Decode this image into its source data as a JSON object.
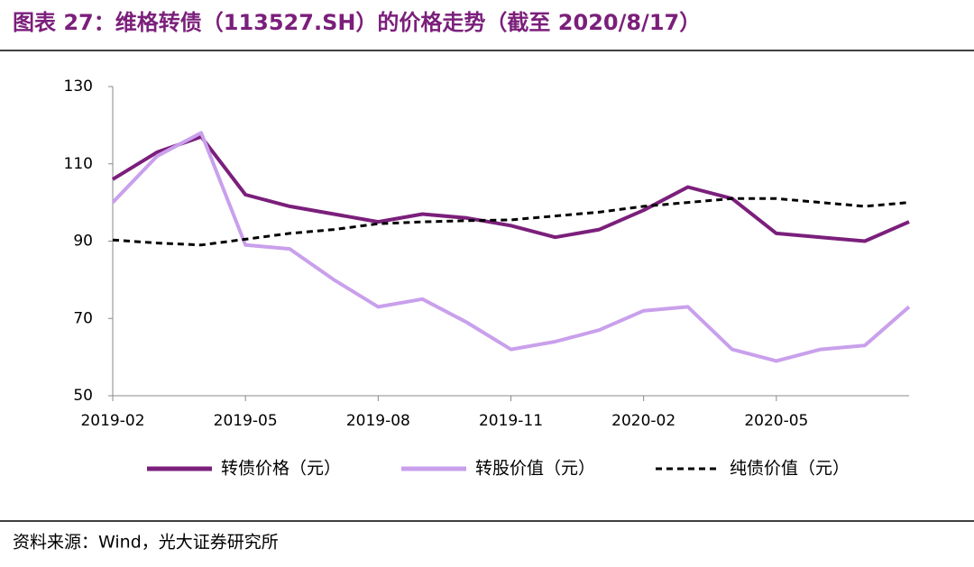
{
  "chart_data": {
    "type": "line",
    "title": "图表 27：维格转债（113527.SH）的价格走势（截至 2020/8/17）",
    "source": "资料来源：Wind，光大证券研究所",
    "categories": [
      "2019-02",
      null,
      null,
      "2019-05",
      null,
      null,
      "2019-08",
      null,
      null,
      "2019-11",
      null,
      null,
      "2020-02",
      null,
      null,
      "2020-05",
      null,
      null,
      null
    ],
    "series": [
      {
        "name": "转债价格（元）",
        "color": "#7b1f7b",
        "dash": false,
        "values": [
          106,
          113,
          117,
          102,
          99,
          97,
          95,
          97,
          96,
          94,
          91,
          93,
          98,
          104,
          101,
          92,
          91,
          90,
          95
        ]
      },
      {
        "name": "转股价值（元）",
        "color": "#c9a0ec",
        "dash": false,
        "values": [
          100,
          112,
          118,
          89,
          88,
          80,
          73,
          75,
          69,
          62,
          64,
          67,
          72,
          73,
          62,
          59,
          62,
          63,
          73
        ]
      },
      {
        "name": "纯债价值（元）",
        "color": "#000000",
        "dash": true,
        "values": [
          90.3,
          89.5,
          89,
          90.5,
          92,
          93,
          94.5,
          95,
          95.3,
          95.5,
          96.5,
          97.5,
          99,
          100,
          101,
          101,
          100,
          99,
          100
        ]
      }
    ],
    "ylim": [
      50,
      130
    ],
    "yticks": [
      50,
      70,
      90,
      110,
      130
    ],
    "grid": false,
    "legend": "bottom"
  }
}
